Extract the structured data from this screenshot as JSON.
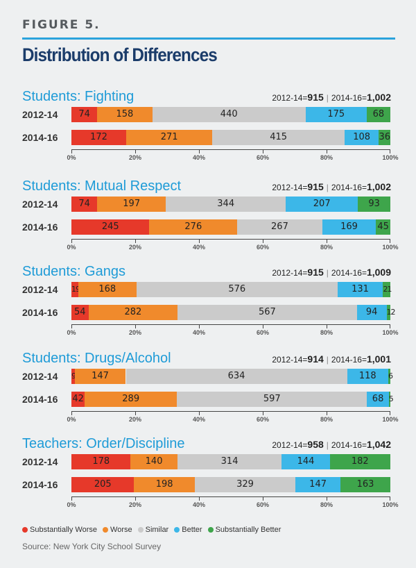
{
  "figure_label": "FIGURE 5.",
  "title": "Distribution of Differences",
  "colors": {
    "substantially_worse": "#e6392a",
    "worse": "#f08a2c",
    "similar": "#cbcbcb",
    "better": "#3cb7e8",
    "substantially_better": "#3ea54b"
  },
  "legend": [
    "Substantially Worse",
    "Worse",
    "Similar",
    "Better",
    "Substantially Better"
  ],
  "source": "Source: New York City School Survey",
  "chart_data": [
    {
      "type": "bar",
      "stacked": "percent",
      "title": "Students: Fighting",
      "count_labels": [
        "2012-14=",
        "915",
        "2014-16=",
        "1,002"
      ],
      "xticks": [
        "0%",
        "20%",
        "40%",
        "60%",
        "80%",
        "100%"
      ],
      "series_names": [
        "Substantially Worse",
        "Worse",
        "Similar",
        "Better",
        "Substantially Better"
      ],
      "rows": [
        {
          "label": "2012-14",
          "values": [
            74,
            158,
            440,
            175,
            68
          ]
        },
        {
          "label": "2014-16",
          "values": [
            172,
            271,
            415,
            108,
            36
          ]
        }
      ]
    },
    {
      "type": "bar",
      "stacked": "percent",
      "title": "Students: Mutual Respect",
      "count_labels": [
        "2012-14=",
        "915",
        "2014-16=",
        "1,002"
      ],
      "xticks": [
        "0%",
        "20%",
        "40%",
        "60%",
        "80%",
        "100%"
      ],
      "series_names": [
        "Substantially Worse",
        "Worse",
        "Similar",
        "Better",
        "Substantially Better"
      ],
      "rows": [
        {
          "label": "2012-14",
          "values": [
            74,
            197,
            344,
            207,
            93
          ]
        },
        {
          "label": "2014-16",
          "values": [
            245,
            276,
            267,
            169,
            45
          ]
        }
      ]
    },
    {
      "type": "bar",
      "stacked": "percent",
      "title": "Students: Gangs",
      "count_labels": [
        "2012-14=",
        "915",
        "2014-16=",
        "1,009"
      ],
      "xticks": [
        "0%",
        "20%",
        "40%",
        "60%",
        "80%",
        "100%"
      ],
      "series_names": [
        "Substantially Worse",
        "Worse",
        "Similar",
        "Better",
        "Substantially Better"
      ],
      "rows": [
        {
          "label": "2012-14",
          "values": [
            19,
            168,
            576,
            131,
            21
          ]
        },
        {
          "label": "2014-16",
          "values": [
            54,
            282,
            567,
            94,
            12
          ]
        }
      ]
    },
    {
      "type": "bar",
      "stacked": "percent",
      "title": "Students: Drugs/Alcohol",
      "count_labels": [
        "2012-14=",
        "914",
        "2014-16=",
        "1,001"
      ],
      "xticks": [
        "0%",
        "20%",
        "40%",
        "60%",
        "80%",
        "100%"
      ],
      "series_names": [
        "Substantially Worse",
        "Worse",
        "Similar",
        "Better",
        "Substantially Better"
      ],
      "rows": [
        {
          "label": "2012-14",
          "values": [
            9,
            147,
            634,
            118,
            6
          ]
        },
        {
          "label": "2014-16",
          "values": [
            42,
            289,
            597,
            68,
            5
          ]
        }
      ]
    },
    {
      "type": "bar",
      "stacked": "percent",
      "title": "Teachers: Order/Discipline",
      "count_labels": [
        "2012-14=",
        "958",
        "2014-16=",
        "1,042"
      ],
      "xticks": [
        "0%",
        "20%",
        "40%",
        "60%",
        "80%",
        "100%"
      ],
      "series_names": [
        "Substantially Worse",
        "Worse",
        "Similar",
        "Better",
        "Substantially Better"
      ],
      "rows": [
        {
          "label": "2012-14",
          "values": [
            178,
            140,
            314,
            144,
            182
          ]
        },
        {
          "label": "2014-16",
          "values": [
            205,
            198,
            329,
            147,
            163
          ]
        }
      ]
    }
  ]
}
